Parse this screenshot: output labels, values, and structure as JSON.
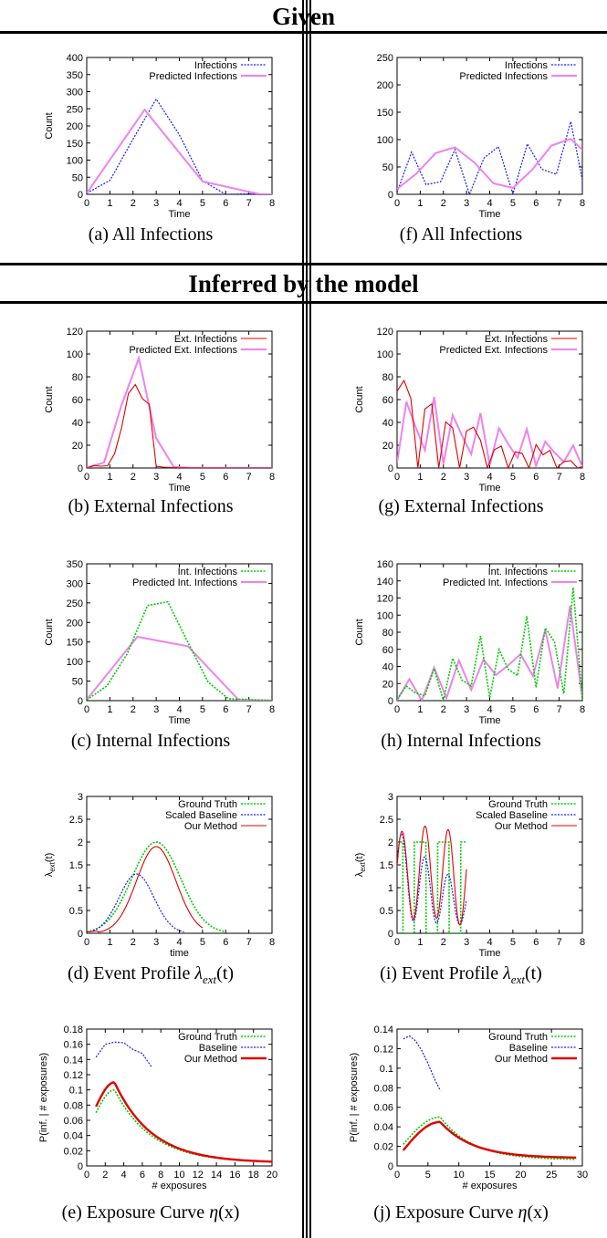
{
  "headers": {
    "given": "Given",
    "inferred": "Inferred by the model"
  },
  "colors": {
    "blue": "#1a1aff",
    "pink": "#ee82ee",
    "red": "#e00000",
    "green": "#00cc00"
  },
  "chart_data": [
    {
      "id": "a",
      "type": "line",
      "caption": "(a)  All Infections",
      "xlabel": "Time",
      "ylabel": "Count",
      "xlim": [
        0,
        8
      ],
      "ylim": [
        0,
        400
      ],
      "xticks": [
        0,
        1,
        2,
        3,
        4,
        5,
        6,
        7,
        8
      ],
      "yticks": [
        0,
        50,
        100,
        150,
        200,
        250,
        300,
        350,
        400
      ],
      "legend": [
        {
          "name": "Infections",
          "style": "blue-dot"
        },
        {
          "name": "Predicted Infections",
          "style": "pink"
        }
      ],
      "series": [
        {
          "name": "Infections",
          "style": "blue-dot",
          "gen": "gauss",
          "A": 290,
          "mu": 3.0,
          "s": 1.0,
          "noise": 22,
          "n": 400
        },
        {
          "name": "Predicted Infections",
          "style": "pink",
          "gen": "gauss",
          "A": 280,
          "mu": 3.0,
          "s": 1.0,
          "n": 160
        }
      ]
    },
    {
      "id": "f",
      "type": "line",
      "caption": "(f)  All Infections",
      "xlabel": "Time",
      "ylabel": "",
      "xlim": [
        0,
        8
      ],
      "ylim": [
        0,
        250
      ],
      "xticks": [
        0,
        1,
        2,
        3,
        4,
        5,
        6,
        7,
        8
      ],
      "yticks": [
        0,
        50,
        100,
        150,
        200,
        250
      ],
      "legend": [
        {
          "name": "Infections",
          "style": "blue-dot"
        },
        {
          "name": "Predicted Infections",
          "style": "pink"
        }
      ],
      "series": [
        {
          "name": "Infections",
          "style": "blue-dot",
          "gen": "periodic",
          "base": 60,
          "amp": 55,
          "grow": [
            0.6,
            1.2
          ],
          "noise": 20,
          "n": 400
        },
        {
          "name": "Predicted Infections",
          "style": "pink",
          "gen": "periodic",
          "base": 55,
          "amp": 45,
          "grow": [
            0.8,
            1.05
          ],
          "n": 300
        }
      ]
    },
    {
      "id": "b",
      "type": "line",
      "caption": "(b)  External Infections",
      "xlabel": "Time",
      "ylabel": "Count",
      "xlim": [
        0,
        8
      ],
      "ylim": [
        0,
        120
      ],
      "xticks": [
        0,
        1,
        2,
        3,
        4,
        5,
        6,
        7,
        8
      ],
      "yticks": [
        0,
        20,
        40,
        60,
        80,
        100,
        120
      ],
      "legend": [
        {
          "name": "Ext. Infections",
          "style": "red"
        },
        {
          "name": "Predicted Ext. Infections",
          "style": "pink"
        }
      ],
      "series": [
        {
          "name": "Predicted Ext. Infections",
          "style": "pink",
          "gen": "gauss",
          "A": 100,
          "mu": 2.1,
          "s": 0.55,
          "n": 160
        },
        {
          "name": "Ext. Infections",
          "style": "red",
          "gen": "gausscut",
          "A": 72,
          "mu": 2.2,
          "s": 0.6,
          "cut": 3.0,
          "noise": 10,
          "n": 400
        }
      ]
    },
    {
      "id": "g",
      "type": "line",
      "caption": "(g)  External Infections",
      "xlabel": "Time",
      "ylabel": "Count",
      "xlim": [
        0,
        8
      ],
      "ylim": [
        0,
        120
      ],
      "xticks": [
        0,
        1,
        2,
        3,
        4,
        5,
        6,
        7,
        8
      ],
      "yticks": [
        0,
        20,
        40,
        60,
        80,
        100,
        120
      ],
      "legend": [
        {
          "name": "Ext. Infections",
          "style": "red"
        },
        {
          "name": "Predicted Ext. Infections",
          "style": "pink"
        }
      ],
      "series": [
        {
          "name": "Predicted Ext. Infections",
          "style": "pink",
          "gen": "periodic",
          "base": 30,
          "amp": 28,
          "grow": [
            1.3,
            0.3
          ],
          "n": 300
        },
        {
          "name": "Ext. Infections",
          "style": "red",
          "gen": "square",
          "base": 75,
          "decay": 0.28,
          "noise": 8,
          "n": 400
        }
      ]
    },
    {
      "id": "c",
      "type": "line",
      "caption": "(c)  Internal Infections",
      "xlabel": "Time",
      "ylabel": "Count",
      "xlim": [
        0,
        8
      ],
      "ylim": [
        0,
        350
      ],
      "xticks": [
        0,
        1,
        2,
        3,
        4,
        5,
        6,
        7,
        8
      ],
      "yticks": [
        0,
        50,
        100,
        150,
        200,
        250,
        300,
        350
      ],
      "legend": [
        {
          "name": "Int. Infections",
          "style": "green-dot"
        },
        {
          "name": "Predicted Int. Infections",
          "style": "pink"
        }
      ],
      "series": [
        {
          "name": "Predicted Int. Infections",
          "style": "pink",
          "gen": "gauss",
          "A": 260,
          "mu": 3.2,
          "s": 1.05,
          "n": 160
        },
        {
          "name": "Int. Infections",
          "style": "green-dot",
          "gen": "gauss",
          "A": 270,
          "mu": 3.1,
          "s": 1.1,
          "noise": 18,
          "n": 400
        }
      ]
    },
    {
      "id": "h",
      "type": "line",
      "caption": "(h)  Internal Infections",
      "xlabel": "Time",
      "ylabel": "Count",
      "xlim": [
        0,
        8
      ],
      "ylim": [
        0,
        160
      ],
      "xticks": [
        0,
        1,
        2,
        3,
        4,
        5,
        6,
        7,
        8
      ],
      "yticks": [
        0,
        20,
        40,
        60,
        80,
        100,
        120,
        140,
        160
      ],
      "legend": [
        {
          "name": "Int. Infections",
          "style": "green-dot"
        },
        {
          "name": "Predicted Int. Infections",
          "style": "pink"
        }
      ],
      "series": [
        {
          "name": "Predicted Int. Infections",
          "style": "pink",
          "gen": "periodic",
          "base": 45,
          "amp": 45,
          "grow": [
            0.2,
            1.4
          ],
          "n": 300
        },
        {
          "name": "Int. Infections",
          "style": "green-dot",
          "gen": "periodic",
          "base": 50,
          "amp": 55,
          "grow": [
            0.15,
            1.3
          ],
          "noise": 18,
          "n": 400
        }
      ]
    },
    {
      "id": "d",
      "type": "line",
      "caption": "(d)  Event Profile ",
      "caption_math": "λ",
      "caption_sub": "ext",
      "caption_tail": "(t)",
      "xlabel": "time",
      "ylabel": "λext(t)",
      "xlim": [
        0,
        8
      ],
      "ylim": [
        0,
        3
      ],
      "xticks": [
        0,
        1,
        2,
        3,
        4,
        5,
        6,
        7,
        8
      ],
      "yticks": [
        0,
        0.5,
        1,
        1.5,
        2,
        2.5,
        3
      ],
      "legend": [
        {
          "name": "Ground Truth",
          "style": "green-dot"
        },
        {
          "name": "Scaled Baseline",
          "style": "blue-dot"
        },
        {
          "name": "Our Method",
          "style": "red"
        }
      ],
      "series": [
        {
          "name": "Ground Truth",
          "style": "green-dot",
          "gen": "gaussr",
          "A": 2.0,
          "mu": 3.0,
          "s": 1.05,
          "xmax": 6.0,
          "n": 120
        },
        {
          "name": "Scaled Baseline",
          "style": "blue-dot",
          "gen": "gaussr",
          "A": 1.3,
          "mu": 2.15,
          "s": 0.75,
          "xmax": 4.2,
          "n": 120
        },
        {
          "name": "Our Method",
          "style": "red",
          "gen": "gaussr",
          "A": 1.9,
          "mu": 3.0,
          "s": 0.85,
          "xmax": 5.0,
          "n": 120
        }
      ]
    },
    {
      "id": "i",
      "type": "line",
      "caption": "(i)  Event Profile ",
      "caption_math": "λ",
      "caption_sub": "ext",
      "caption_tail": "(t)",
      "xlabel": "Time",
      "ylabel": "λext(t)",
      "xlim": [
        0,
        8
      ],
      "ylim": [
        0,
        3
      ],
      "xticks": [
        0,
        1,
        2,
        3,
        4,
        5,
        6,
        7,
        8
      ],
      "yticks": [
        0,
        0.5,
        1,
        1.5,
        2,
        2.5,
        3
      ],
      "legend": [
        {
          "name": "Ground Truth",
          "style": "green-dot"
        },
        {
          "name": "Scaled Baseline",
          "style": "blue-dot"
        },
        {
          "name": "Our Method",
          "style": "red"
        }
      ],
      "series": [
        {
          "name": "Ground Truth",
          "style": "green-dot",
          "gen": "squarewave",
          "hi": 2.0,
          "n": 400
        },
        {
          "name": "Scaled Baseline",
          "style": "blue-dot",
          "gen": "decaysin",
          "n": 300
        },
        {
          "name": "Our Method",
          "style": "red",
          "gen": "sinewave",
          "n": 400
        }
      ]
    },
    {
      "id": "e",
      "type": "line",
      "caption": "(e)  Exposure Curve ",
      "caption_math": "η",
      "caption_tail": "(x)",
      "xlabel": "# exposures",
      "ylabel": "P(inf. | # exposures)",
      "xlim": [
        0,
        20
      ],
      "ylim": [
        0,
        0.18
      ],
      "xticks": [
        0,
        2,
        4,
        6,
        8,
        10,
        12,
        14,
        16,
        18,
        20
      ],
      "yticks": [
        0,
        0.02,
        0.04,
        0.06,
        0.08,
        0.1,
        0.12,
        0.14,
        0.16,
        0.18
      ],
      "legend": [
        {
          "name": "Ground Truth",
          "style": "green-dot"
        },
        {
          "name": "Baseline",
          "style": "blue-dot"
        },
        {
          "name": "Our Method",
          "style": "red-thick"
        }
      ],
      "series": [
        {
          "name": "Baseline",
          "style": "blue-dot",
          "x": [
            1,
            2,
            3,
            4,
            5,
            6,
            7
          ],
          "y": [
            0.143,
            0.16,
            0.163,
            0.162,
            0.153,
            0.148,
            0.13
          ]
        },
        {
          "name": "Ground Truth",
          "style": "green-dot",
          "gen": "expo",
          "peak": 0.1,
          "xp": 3,
          "tail": 0.004,
          "x0": 1,
          "x1": 20,
          "start": 0.07,
          "n": 100
        },
        {
          "name": "Our Method",
          "style": "red-thick",
          "gen": "expo",
          "peak": 0.11,
          "xp": 3,
          "tail": 0.004,
          "x0": 1,
          "x1": 20,
          "start": 0.078,
          "n": 100
        }
      ]
    },
    {
      "id": "j",
      "type": "line",
      "caption": "(j)  Exposure Curve ",
      "caption_math": "η",
      "caption_tail": "(x)",
      "xlabel": "# exposures",
      "ylabel": "P(inf. | # exposures)",
      "xlim": [
        0,
        30
      ],
      "ylim": [
        0,
        0.14
      ],
      "xticks": [
        0,
        5,
        10,
        15,
        20,
        25,
        30
      ],
      "yticks": [
        0,
        0.02,
        0.04,
        0.06,
        0.08,
        0.1,
        0.12,
        0.14
      ],
      "legend": [
        {
          "name": "Ground Truth",
          "style": "green-dot"
        },
        {
          "name": "Baseline",
          "style": "blue-dot"
        },
        {
          "name": "Our Method",
          "style": "red-thick"
        }
      ],
      "series": [
        {
          "name": "Baseline",
          "style": "blue-dot",
          "x": [
            1,
            2,
            3,
            4,
            5,
            6,
            7
          ],
          "y": [
            0.13,
            0.133,
            0.128,
            0.118,
            0.105,
            0.09,
            0.077
          ]
        },
        {
          "name": "Ground Truth",
          "style": "green-dot",
          "gen": "expo",
          "peak": 0.05,
          "xp": 7,
          "tail": 0.006,
          "x0": 1,
          "x1": 29,
          "start": 0.022,
          "n": 100
        },
        {
          "name": "Our Method",
          "style": "red-thick",
          "gen": "expo",
          "peak": 0.045,
          "xp": 7,
          "tail": 0.008,
          "x0": 1,
          "x1": 29,
          "start": 0.016,
          "n": 100
        }
      ]
    }
  ]
}
